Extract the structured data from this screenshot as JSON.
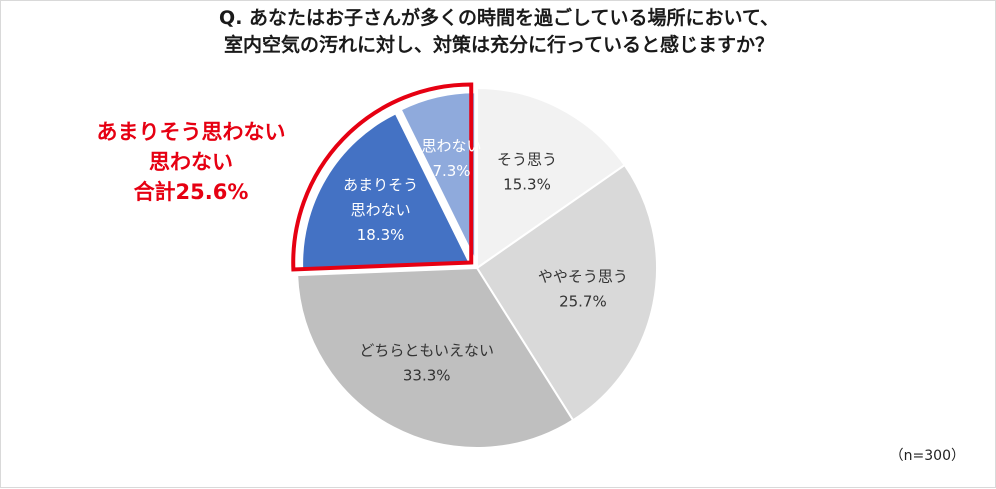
{
  "title": {
    "line1": "Q. あなたはお子さんが多くの時間を過ごしている場所において、",
    "line2": "室内空気の汚れに対し、対策は充分に行っていると感じますか？"
  },
  "callout": {
    "line1": "あまりそう思わない",
    "line2": "思わない",
    "line3": "合計25.6%"
  },
  "note": "（n=300）",
  "colors": {
    "callout": "#e60012",
    "title": "#1a1a1a",
    "slice_border": "#ffffff"
  },
  "chart_data": {
    "type": "pie",
    "start": "12 o'clock",
    "direction": "clockwise",
    "slices": [
      {
        "label_lines": [
          "そう思う"
        ],
        "value": 15.3,
        "value_text": "15.3%",
        "color": "#f2f2f2",
        "text_color": "#333333"
      },
      {
        "label_lines": [
          "ややそう思う"
        ],
        "value": 25.7,
        "value_text": "25.7%",
        "color": "#d9d9d9",
        "text_color": "#333333"
      },
      {
        "label_lines": [
          "どちらともいえない"
        ],
        "value": 33.3,
        "value_text": "33.3%",
        "color": "#bfbfbf",
        "text_color": "#333333"
      },
      {
        "label_lines": [
          "あまりそう",
          "思わない"
        ],
        "value": 18.3,
        "value_text": "18.3%",
        "color": "#4472c4",
        "text_color": "#ffffff",
        "highlight": true
      },
      {
        "label_lines": [
          "思わない"
        ],
        "value": 7.3,
        "value_text": "7.3%",
        "color": "#8faadc",
        "text_color": "#ffffff",
        "highlight": true
      }
    ]
  }
}
